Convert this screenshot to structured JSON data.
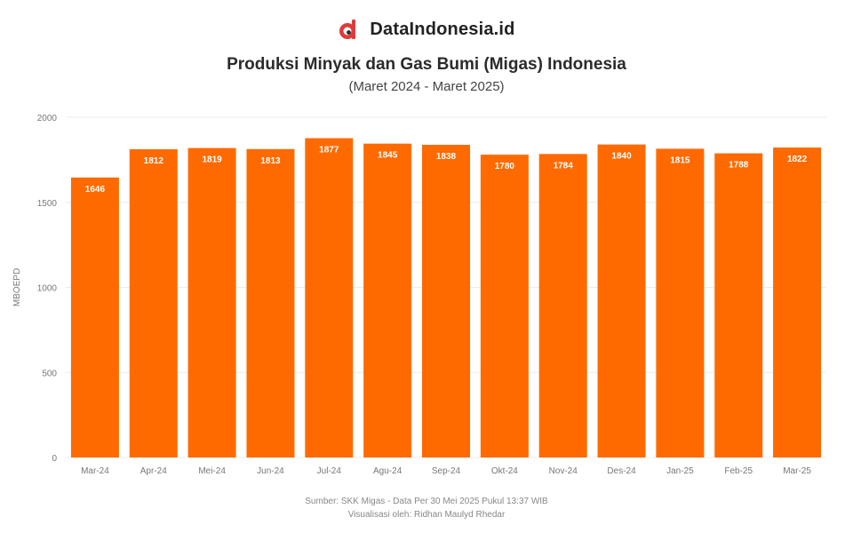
{
  "brand": {
    "name": "DataIndonesia.id",
    "logo_icon": "dataindonesia-logo-icon",
    "logo_color": "#e03a3a"
  },
  "chart_data": {
    "type": "bar",
    "title": "Produksi Minyak dan Gas Bumi (Migas) Indonesia",
    "subtitle": "(Maret 2024 - Maret 2025)",
    "ylabel": "MBOEPD",
    "xlabel": "",
    "categories": [
      "Mar-24",
      "Apr-24",
      "Mei-24",
      "Jun-24",
      "Jul-24",
      "Agu-24",
      "Sep-24",
      "Okt-24",
      "Nov-24",
      "Des-24",
      "Jan-25",
      "Feb-25",
      "Mar-25"
    ],
    "values": [
      1646,
      1812,
      1819,
      1813,
      1877,
      1845,
      1838,
      1780,
      1784,
      1840,
      1815,
      1788,
      1822
    ],
    "ylim": [
      0,
      2000
    ],
    "yticks": [
      0,
      500,
      1000,
      1500,
      2000
    ],
    "bar_color": "#ff6a00",
    "grid": true,
    "legend": "none"
  },
  "footer": {
    "source": "Sumber: SKK Migas - Data Per 30 Mei 2025 Pukul 13:37 WIB",
    "visualized_by": "Visualisasi oleh: Ridhan Maulyd Rhedar"
  }
}
